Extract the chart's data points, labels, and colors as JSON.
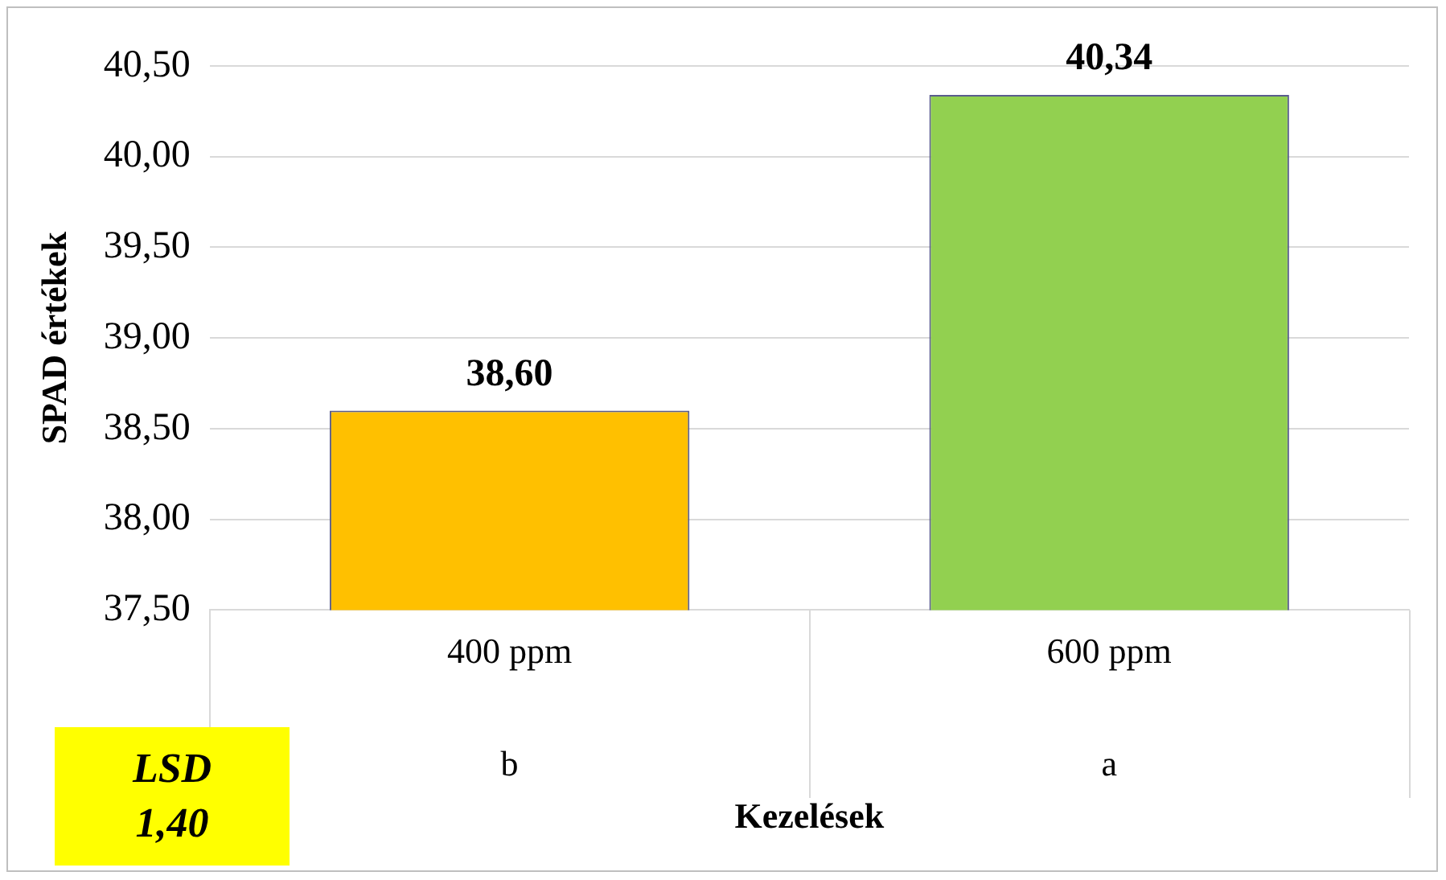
{
  "chart_data": {
    "type": "bar",
    "xlabel": "Kezelések",
    "ylabel": "SPAD értékek",
    "categories": [
      "400 ppm",
      "600 ppm"
    ],
    "values": [
      38.6,
      40.34
    ],
    "colors": [
      "#ffc000",
      "#92d050"
    ],
    "value_labels": [
      "38,60",
      "40,34"
    ],
    "ylim": [
      37.5,
      40.5
    ],
    "yticks": [
      {
        "value": 37.5,
        "label": "37,50"
      },
      {
        "value": 38,
        "label": "38,00"
      },
      {
        "value": 38.5,
        "label": "38,50"
      },
      {
        "value": 39,
        "label": "39,00"
      },
      {
        "value": 39.5,
        "label": "39,50"
      },
      {
        "value": 40,
        "label": "40,00"
      },
      {
        "value": 40.5,
        "label": "40,50"
      }
    ],
    "grid": "y",
    "annotations": [
      "b",
      "a",
      "LSD 1,40"
    ]
  }
}
